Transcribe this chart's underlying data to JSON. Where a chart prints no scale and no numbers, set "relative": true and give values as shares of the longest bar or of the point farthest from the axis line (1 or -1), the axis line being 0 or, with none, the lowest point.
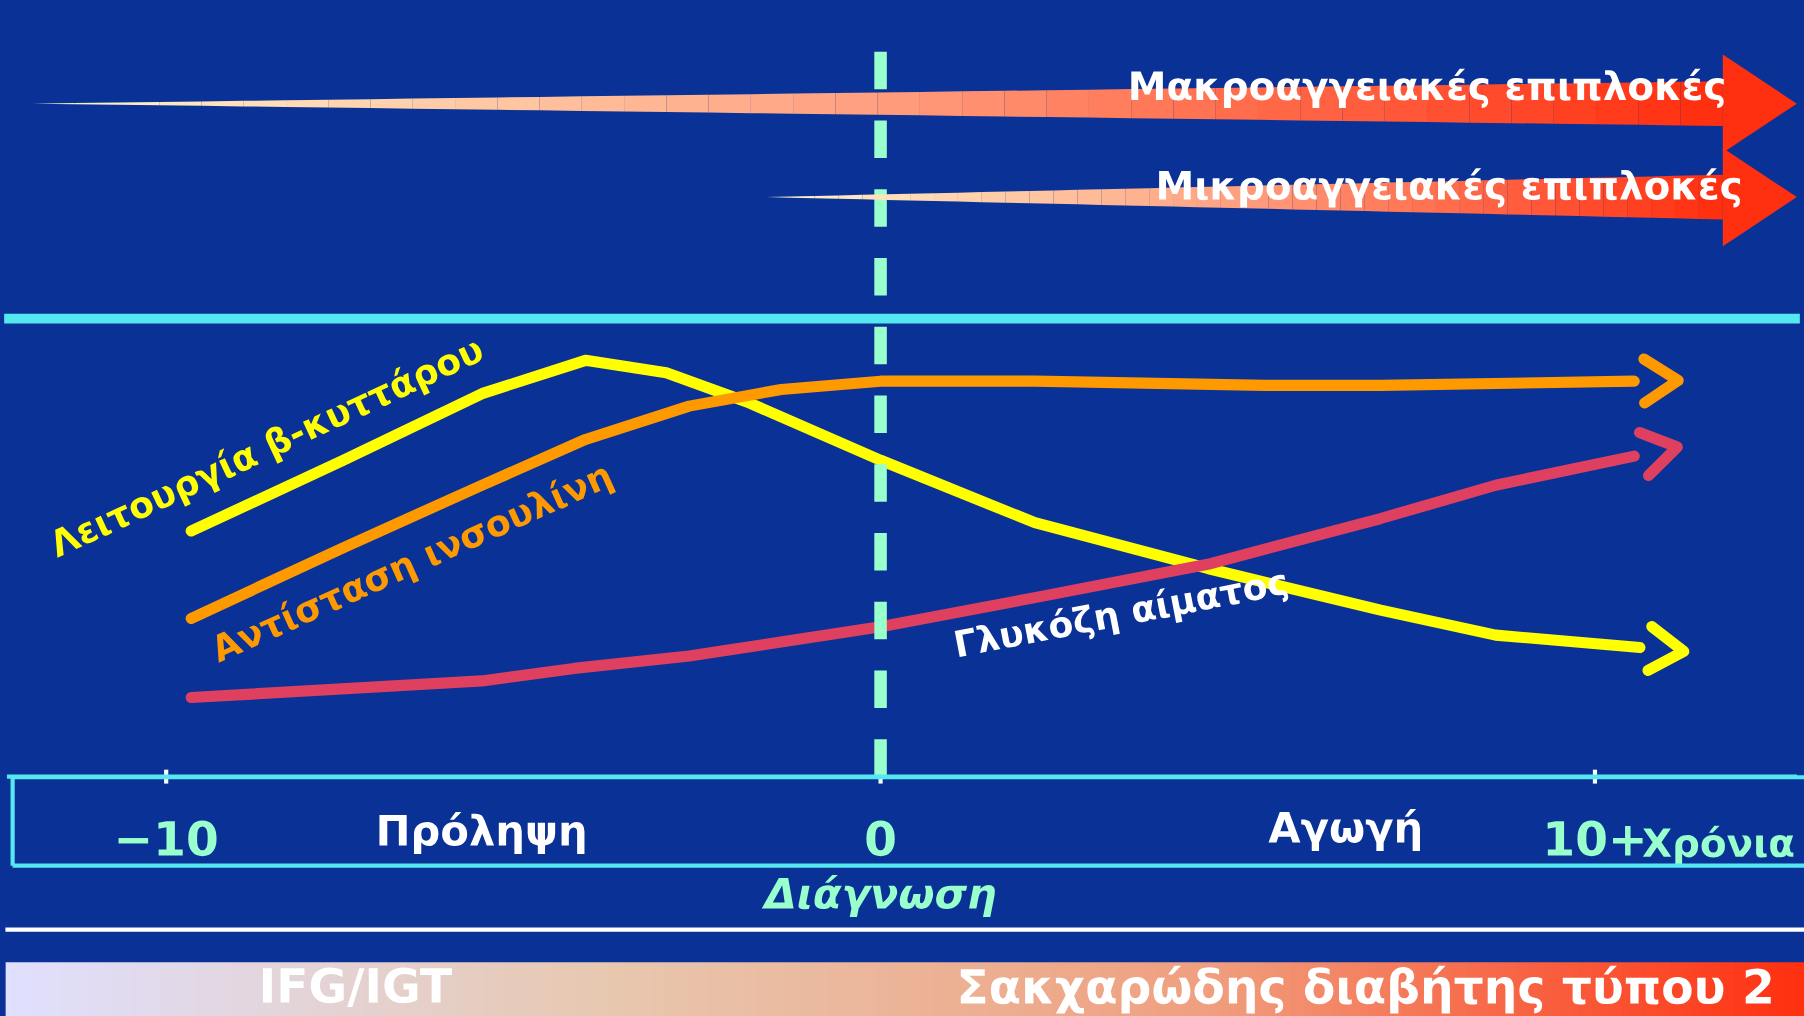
{
  "chart_data": {
    "type": "line",
    "relative": true,
    "x": [
      -9.65,
      -7.52,
      -5.58,
      -4.13,
      -3.0,
      -1.87,
      0,
      2.16,
      4.58,
      7.0,
      8.61,
      10.63
    ],
    "series": [
      {
        "name": "Λειτουργία β-κυττάρου",
        "color": "#ffff00",
        "values": [
          0.59,
          0.76,
          0.92,
          1.0,
          0.97,
          0.9,
          0.76,
          0.61,
          0.5,
          0.4,
          0.34,
          0.31
        ]
      },
      {
        "name": "Αντίσταση ινσουλίνη",
        "color": "#ff9900",
        "x": [
          -9.65,
          -7.52,
          -5.58,
          -4.13,
          -2.68,
          -1.39,
          0,
          2.16,
          5.39,
          7.0,
          10.55
        ],
        "values": [
          0.38,
          0.55,
          0.7,
          0.81,
          0.89,
          0.93,
          0.95,
          0.95,
          0.94,
          0.94,
          0.95
        ]
      },
      {
        "name": "Γλυκόζη αίματος",
        "color": "#e04060",
        "x": [
          -9.65,
          -5.58,
          -4.29,
          -2.68,
          0,
          2.16,
          4.58,
          7.0,
          8.61,
          10.55
        ],
        "values": [
          0.19,
          0.23,
          0.26,
          0.29,
          0.36,
          0.43,
          0.51,
          0.62,
          0.7,
          0.77
        ]
      }
    ],
    "xlim": [
      -12.2,
      12.8
    ],
    "xticks": [
      {
        "value": -10,
        "label": "−10"
      },
      0,
      {
        "value": 10,
        "label": "10+"
      }
    ],
    "xlabel": "Χρόνια",
    "ref_lines": [
      {
        "axis": "x",
        "value": 0,
        "label": "Διάγνωση",
        "color": "#99ffcc",
        "line_style": "dashed"
      }
    ],
    "annotations": [
      "Μακροαγγειακές επιπλοκές",
      "Μικροαγγειακές επιπλοκές",
      "Πρόληψη",
      "Αγωγή",
      "IFG/IGT",
      "Σακχαρώδης διαβήτης τύπου 2"
    ],
    "legend": false,
    "grid": false,
    "marker": "none",
    "line_style": "solid"
  }
}
